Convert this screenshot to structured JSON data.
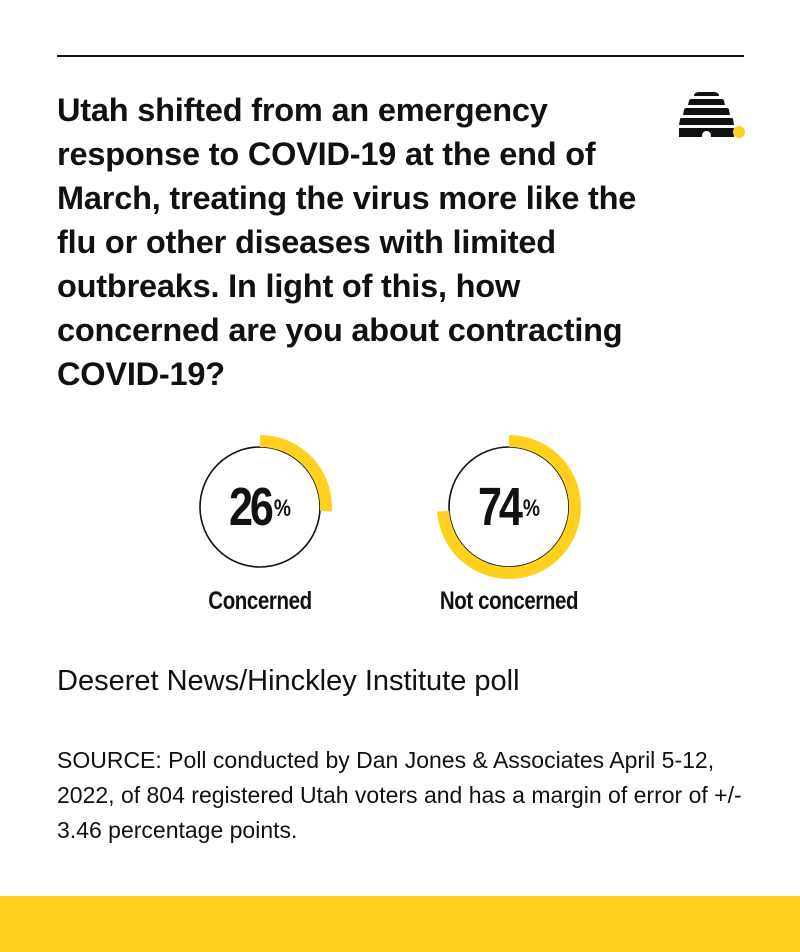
{
  "headline": "Utah shifted from an emergency response to COVID-19 at the end of March, treating the virus more like the flu or other diseases with limited outbreaks. In light of this, how concerned are you about contracting COVID-19?",
  "logo": {
    "icon": "beehive-icon",
    "dot_color": "#FFD11E",
    "hive_color": "#111111"
  },
  "subtitle": "Deseret News/Hinckley Institute poll",
  "source": "SOURCE: Poll conducted by Dan Jones & Associates April 5-12, 2022, of 804 registered Utah voters and has a margin of error of +/- 3.46 percentage points.",
  "colors": {
    "accent": "#FFD11E",
    "text": "#111111",
    "background": "#ffffff"
  },
  "chart_data": [
    {
      "type": "pie",
      "style": "donut",
      "categories": [
        "Concerned"
      ],
      "values": [
        26
      ],
      "value_label": "26",
      "unit": "%",
      "label": "Concerned",
      "color": "#FFD11E"
    },
    {
      "type": "pie",
      "style": "donut",
      "categories": [
        "Not concerned"
      ],
      "values": [
        74
      ],
      "value_label": "74",
      "unit": "%",
      "label": "Not concerned",
      "color": "#FFD11E"
    }
  ]
}
